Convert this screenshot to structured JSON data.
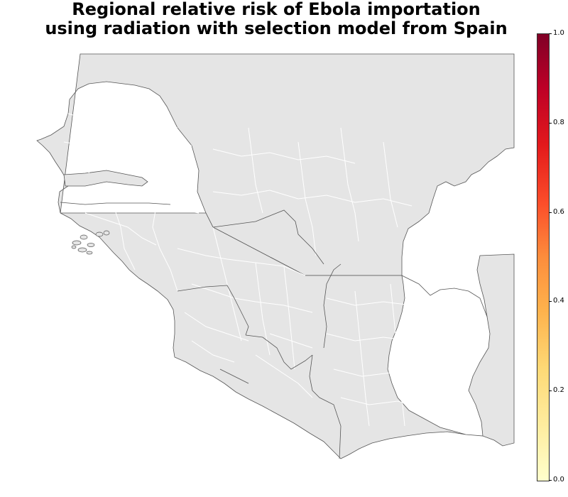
{
  "map": {
    "title_line1": "Regional relative risk of Ebola importation",
    "title_line2": "using radiation with selection model from Spain",
    "land_color": "#e5e5e5",
    "internal_border_color": "#ffffff",
    "coast_border_color": "#555555",
    "regions_uniform_value": 0.0
  },
  "colorbar": {
    "colormap": "YlOrRd",
    "ticks": [
      {
        "value": 0.0,
        "label": "0.0"
      },
      {
        "value": 0.2,
        "label": "0.2"
      },
      {
        "value": 0.4,
        "label": "0.4"
      },
      {
        "value": 0.6,
        "label": "0.6"
      },
      {
        "value": 0.8,
        "label": "0.8"
      },
      {
        "value": 1.0,
        "label": "1.0"
      }
    ],
    "range": [
      0.0,
      1.0
    ]
  }
}
